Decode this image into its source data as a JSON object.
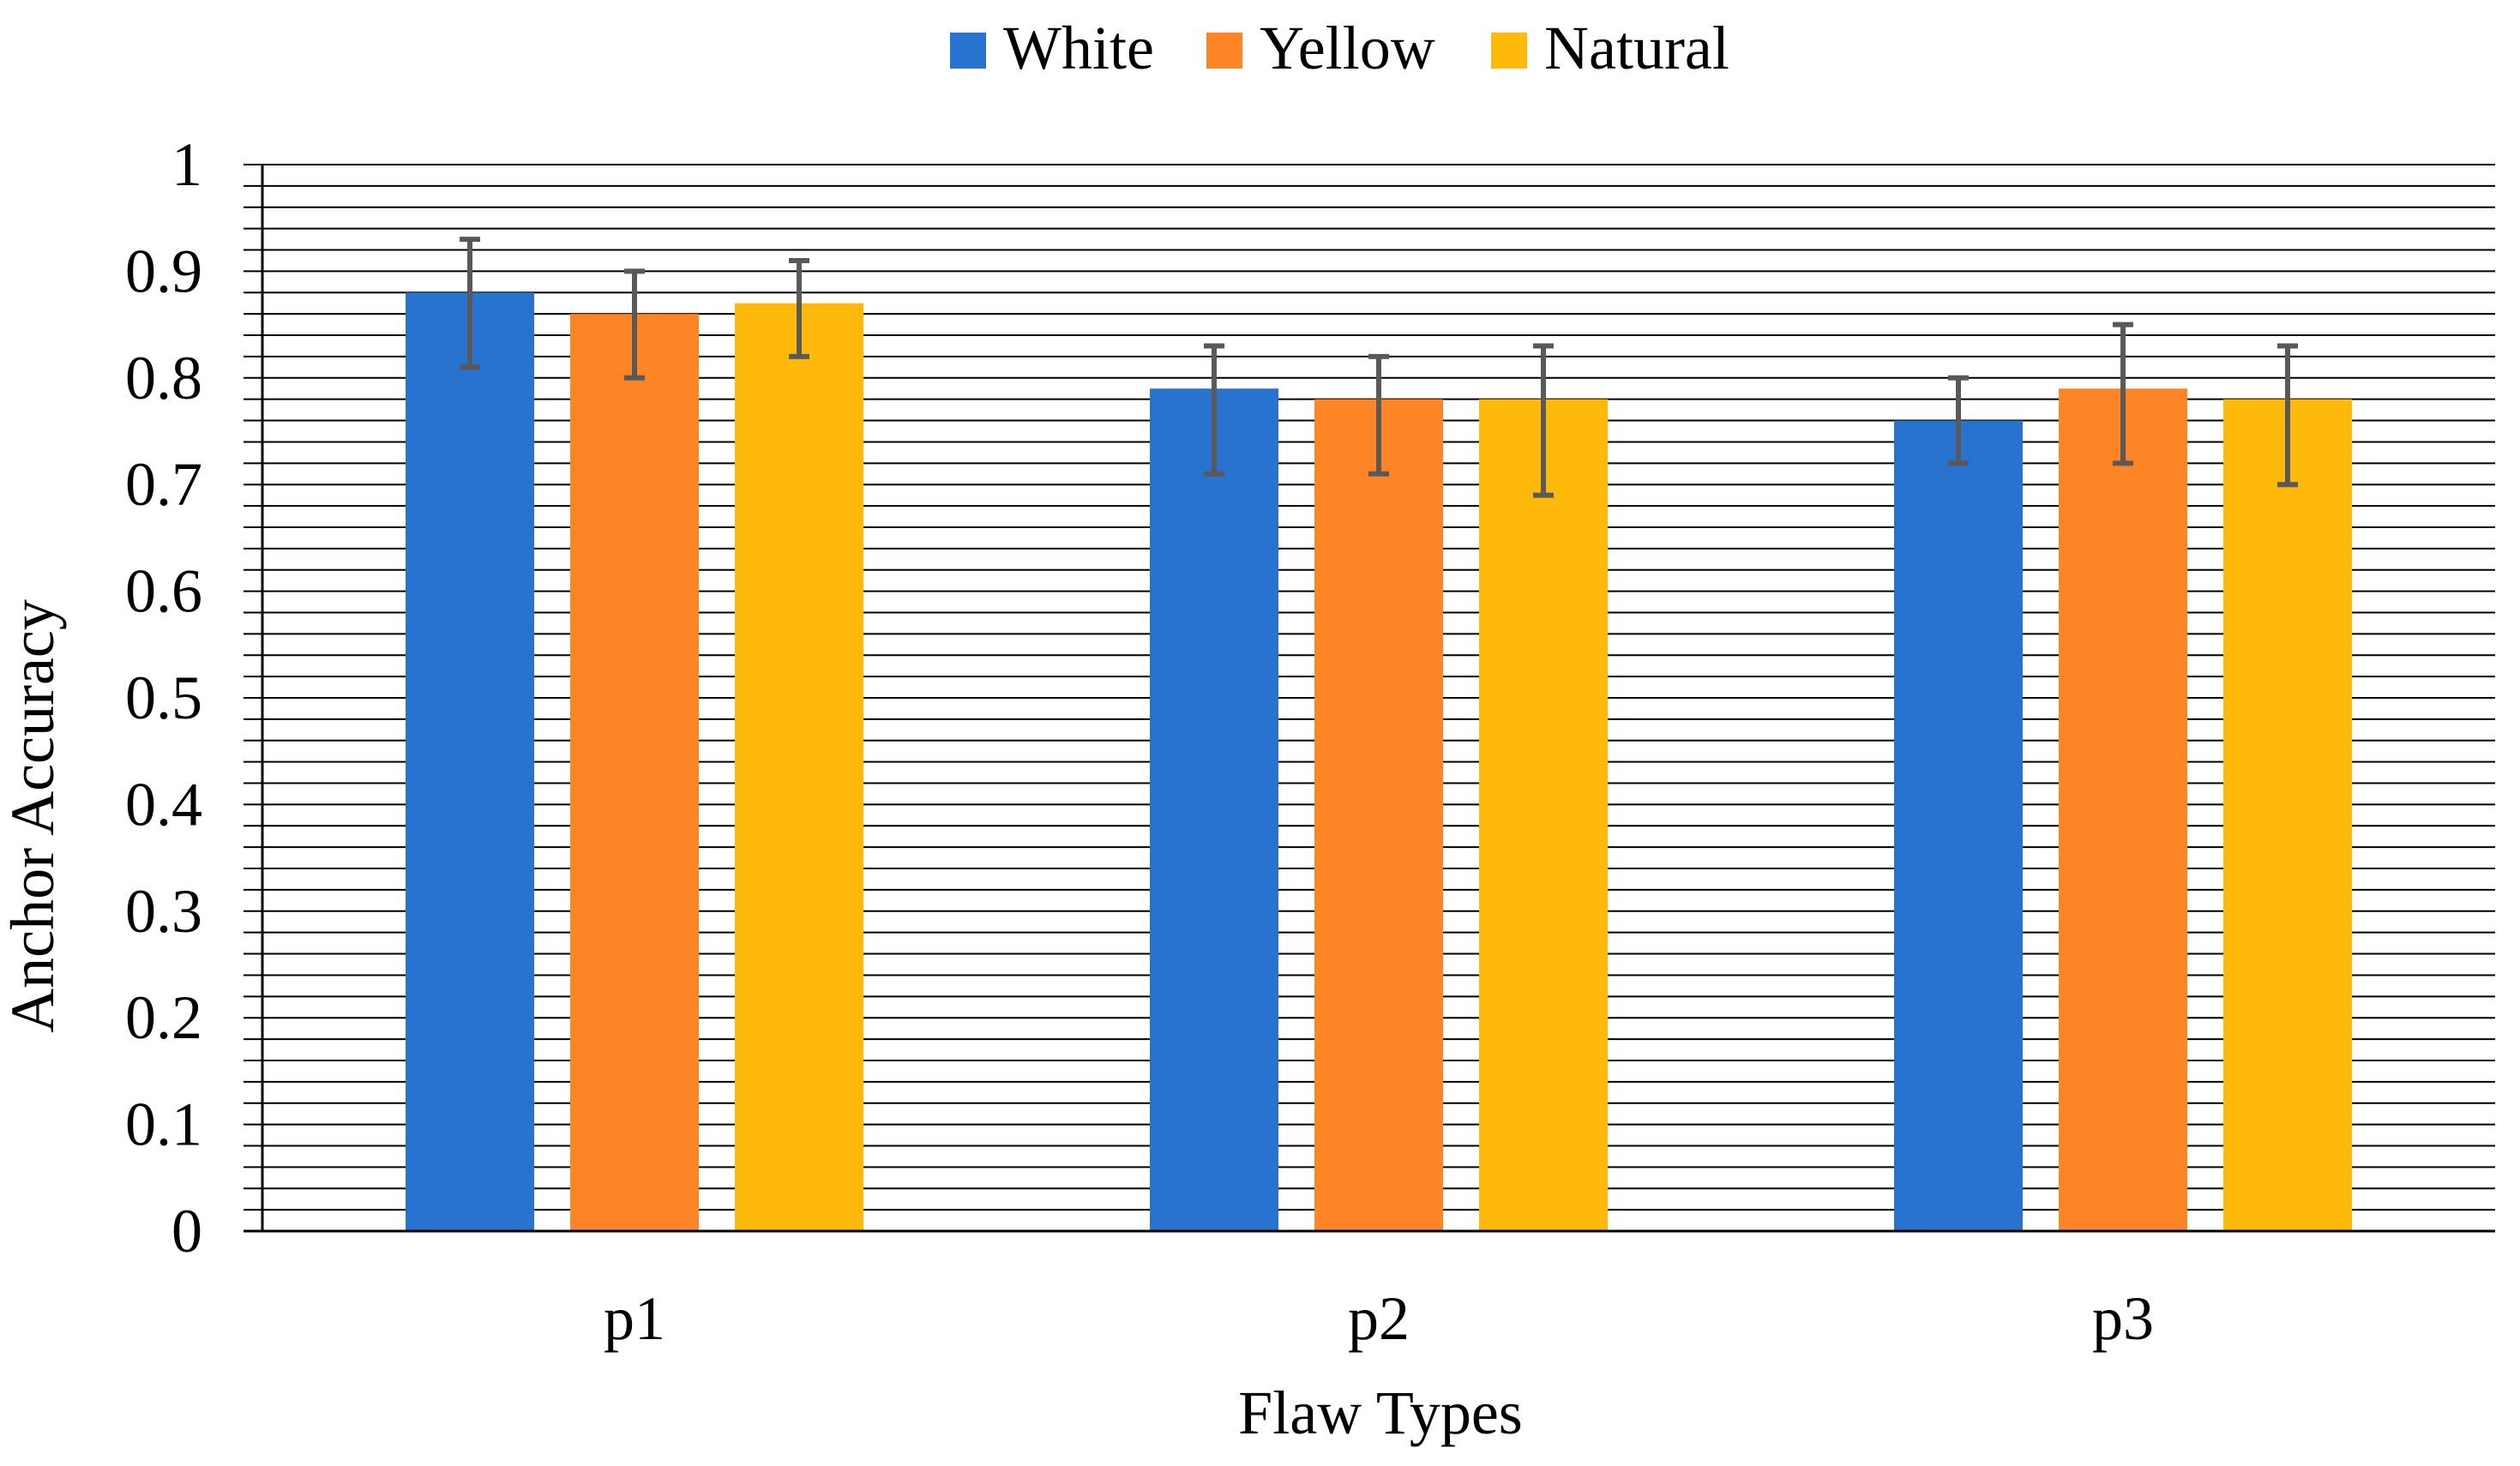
{
  "chart_data": {
    "type": "bar",
    "title": "",
    "categories": [
      "p1",
      "p2",
      "p3"
    ],
    "series": [
      {
        "name": "White",
        "color": "#2773CF",
        "values": [
          0.88,
          0.79,
          0.76
        ],
        "err_low": [
          0.81,
          0.71,
          0.72
        ],
        "err_high": [
          0.93,
          0.83,
          0.8
        ]
      },
      {
        "name": "Yellow",
        "color": "#FD8526",
        "values": [
          0.86,
          0.78,
          0.79
        ],
        "err_low": [
          0.8,
          0.71,
          0.72
        ],
        "err_high": [
          0.9,
          0.82,
          0.85
        ]
      },
      {
        "name": "Natural",
        "color": "#FEB90B",
        "values": [
          0.87,
          0.78,
          0.78
        ],
        "err_low": [
          0.82,
          0.69,
          0.7
        ],
        "err_high": [
          0.91,
          0.83,
          0.83
        ]
      }
    ],
    "xlabel": "Flaw Types",
    "ylabel": "Anchor Accuracy",
    "ylim": [
      0,
      1
    ],
    "yticks": [
      "0",
      "0.1",
      "0.2",
      "0.3",
      "0.4",
      "0.5",
      "0.6",
      "0.7",
      "0.8",
      "0.9",
      "1"
    ],
    "minor_step": 0.02,
    "grid": true,
    "legend_position": "top-center",
    "error_bar_color": "#595959"
  }
}
